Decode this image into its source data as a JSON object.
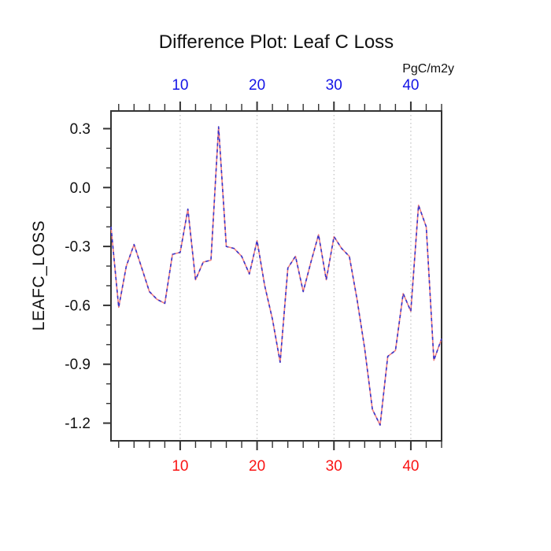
{
  "title": "Difference Plot: Leaf C Loss",
  "units_label": "PgC/m2y",
  "y_axis_title": "LEAFC_LOSS",
  "colors": {
    "frame": "#333333",
    "grid": "#b3b3b3",
    "top_axis_labels": "#1414e6",
    "bottom_axis_labels": "#fa1414",
    "left_axis_labels": "#111111",
    "series_red": "#f08080",
    "series_blue": "#3535cd"
  },
  "chart_data": {
    "type": "line",
    "title": "Difference Plot: Leaf C Loss",
    "xlabel": "",
    "ylabel": "LEAFC_LOSS",
    "top_axis_units": "PgC/m2y",
    "xlim": [
      1,
      44
    ],
    "ylim": [
      -1.29,
      0.39
    ],
    "grid": "vertical-dotted-at-major-x",
    "legend_position": "none",
    "x": [
      1,
      2,
      3,
      4,
      5,
      6,
      7,
      8,
      9,
      10,
      11,
      12,
      13,
      14,
      15,
      16,
      17,
      18,
      19,
      20,
      21,
      22,
      23,
      24,
      25,
      26,
      27,
      28,
      29,
      30,
      31,
      32,
      33,
      34,
      35,
      36,
      37,
      38,
      39,
      40,
      41,
      42,
      43,
      44
    ],
    "series": [
      {
        "name": "difference-red-dashed",
        "color": "#f08080",
        "style": "dashed",
        "values": [
          -0.2,
          -0.61,
          -0.4,
          -0.29,
          -0.41,
          -0.53,
          -0.57,
          -0.59,
          -0.34,
          -0.33,
          -0.11,
          -0.47,
          -0.38,
          -0.37,
          0.31,
          -0.3,
          -0.31,
          -0.35,
          -0.44,
          -0.27,
          -0.5,
          -0.67,
          -0.89,
          -0.41,
          -0.35,
          -0.53,
          -0.38,
          -0.24,
          -0.47,
          -0.25,
          -0.31,
          -0.35,
          -0.57,
          -0.82,
          -1.13,
          -1.21,
          -0.86,
          -0.83,
          -0.54,
          -0.63,
          -0.09,
          -0.2,
          -0.88,
          -0.77
        ]
      },
      {
        "name": "difference-blue-dashed",
        "color": "#3535cd",
        "style": "dashed",
        "values": [
          -0.2,
          -0.61,
          -0.4,
          -0.29,
          -0.41,
          -0.53,
          -0.57,
          -0.59,
          -0.34,
          -0.33,
          -0.11,
          -0.47,
          -0.38,
          -0.37,
          0.31,
          -0.3,
          -0.31,
          -0.35,
          -0.44,
          -0.27,
          -0.5,
          -0.67,
          -0.89,
          -0.41,
          -0.35,
          -0.53,
          -0.38,
          -0.24,
          -0.47,
          -0.25,
          -0.31,
          -0.35,
          -0.57,
          -0.82,
          -1.13,
          -1.21,
          -0.86,
          -0.83,
          -0.54,
          -0.63,
          -0.09,
          -0.2,
          -0.88,
          -0.77
        ]
      }
    ],
    "xticks_labeled": [
      10,
      20,
      30,
      40
    ],
    "xtick_labels": [
      "10",
      "20",
      "30",
      "40"
    ],
    "xticks_minor_step": 2,
    "yticks_labeled": [
      0.3,
      0.0,
      -0.3,
      -0.6,
      -0.9,
      -1.2
    ],
    "ytick_labels": [
      "0.3",
      "0.0",
      "-0.3",
      "-0.6",
      "-0.9",
      "-1.2"
    ],
    "yticks_minor_step": 0.1,
    "grid_x": [
      10,
      20,
      30,
      40
    ]
  }
}
